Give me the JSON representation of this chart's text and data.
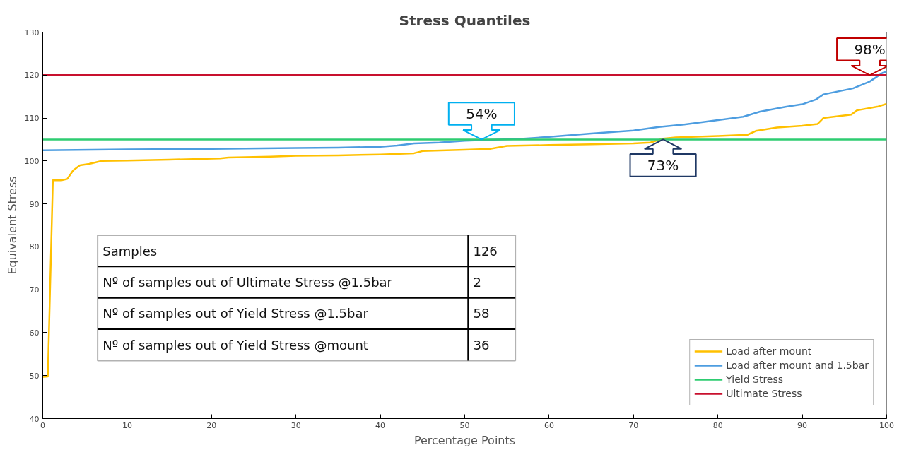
{
  "chart_data": {
    "type": "line",
    "title": "Stress Quantiles",
    "xlabel": "Percentage Points",
    "ylabel": "Equivalent Stress",
    "xlim": [
      0,
      100
    ],
    "ylim": [
      40,
      130
    ],
    "xticks": [
      0,
      10,
      20,
      30,
      40,
      50,
      60,
      70,
      80,
      90,
      100
    ],
    "yticks": [
      40,
      50,
      60,
      70,
      80,
      90,
      100,
      110,
      120,
      130
    ],
    "grid": false,
    "legend": "bottom right",
    "series": [
      {
        "name": "Load after mount",
        "color": "#ffc000",
        "x": [
          0,
          0.6,
          1.2,
          2.2,
          2.9,
          3.6,
          4.4,
          5.5,
          7,
          10,
          15,
          21,
          22,
          27,
          30,
          35,
          40,
          44,
          45,
          50,
          53,
          55,
          60,
          65,
          70,
          72,
          73.5,
          75,
          80,
          83.5,
          84.5,
          87,
          90,
          91.8,
          92.5,
          95.8,
          96.5,
          99,
          100
        ],
        "values": [
          49.7,
          49.8,
          95.5,
          95.5,
          95.8,
          97.8,
          99,
          99.3,
          100,
          100.1,
          100.3,
          100.6,
          100.8,
          101,
          101.2,
          101.3,
          101.5,
          101.8,
          102.3,
          102.6,
          102.8,
          103.5,
          103.7,
          103.9,
          104.1,
          104.3,
          105.2,
          105.5,
          105.8,
          106.1,
          107,
          107.8,
          108.2,
          108.6,
          110,
          110.8,
          111.8,
          112.7,
          113.3
        ]
      },
      {
        "name": "Load after mount and 1.5bar",
        "color": "#4d9de0",
        "x": [
          0,
          10,
          20,
          30,
          35,
          40,
          42,
          44,
          47,
          50,
          54,
          57,
          60,
          65,
          70,
          73,
          76,
          80,
          83,
          85,
          88,
          90,
          91.6,
          92.5,
          96,
          98,
          99.5,
          100
        ],
        "values": [
          102.5,
          102.7,
          102.8,
          103,
          103.1,
          103.3,
          103.6,
          104.1,
          104.3,
          104.7,
          105,
          105.2,
          105.6,
          106.4,
          107.1,
          107.9,
          108.5,
          109.5,
          110.3,
          111.5,
          112.6,
          113.2,
          114.3,
          115.5,
          116.9,
          118.5,
          120.5,
          120.8
        ]
      },
      {
        "name": "Yield Stress",
        "color": "#2ecc71",
        "x": [
          0,
          100
        ],
        "values": [
          105,
          105
        ]
      },
      {
        "name": "Ultimate Stress",
        "color": "#c8102e",
        "x": [
          0,
          100
        ],
        "values": [
          120,
          120
        ]
      }
    ],
    "annotations": [
      {
        "text": "54%",
        "x": 52,
        "y": 105
      },
      {
        "text": "73%",
        "x": 73.5,
        "y": 105
      },
      {
        "text": "98%",
        "x": 98,
        "y": 120
      },
      "Samples",
      "126",
      "Nº of samples out of Ultimate Stress  @1.5bar",
      "2",
      "Nº of samples out of Yield Stress  @1.5bar",
      "58",
      "Nº of samples out of Yield Stress  @mount",
      "36"
    ]
  }
}
